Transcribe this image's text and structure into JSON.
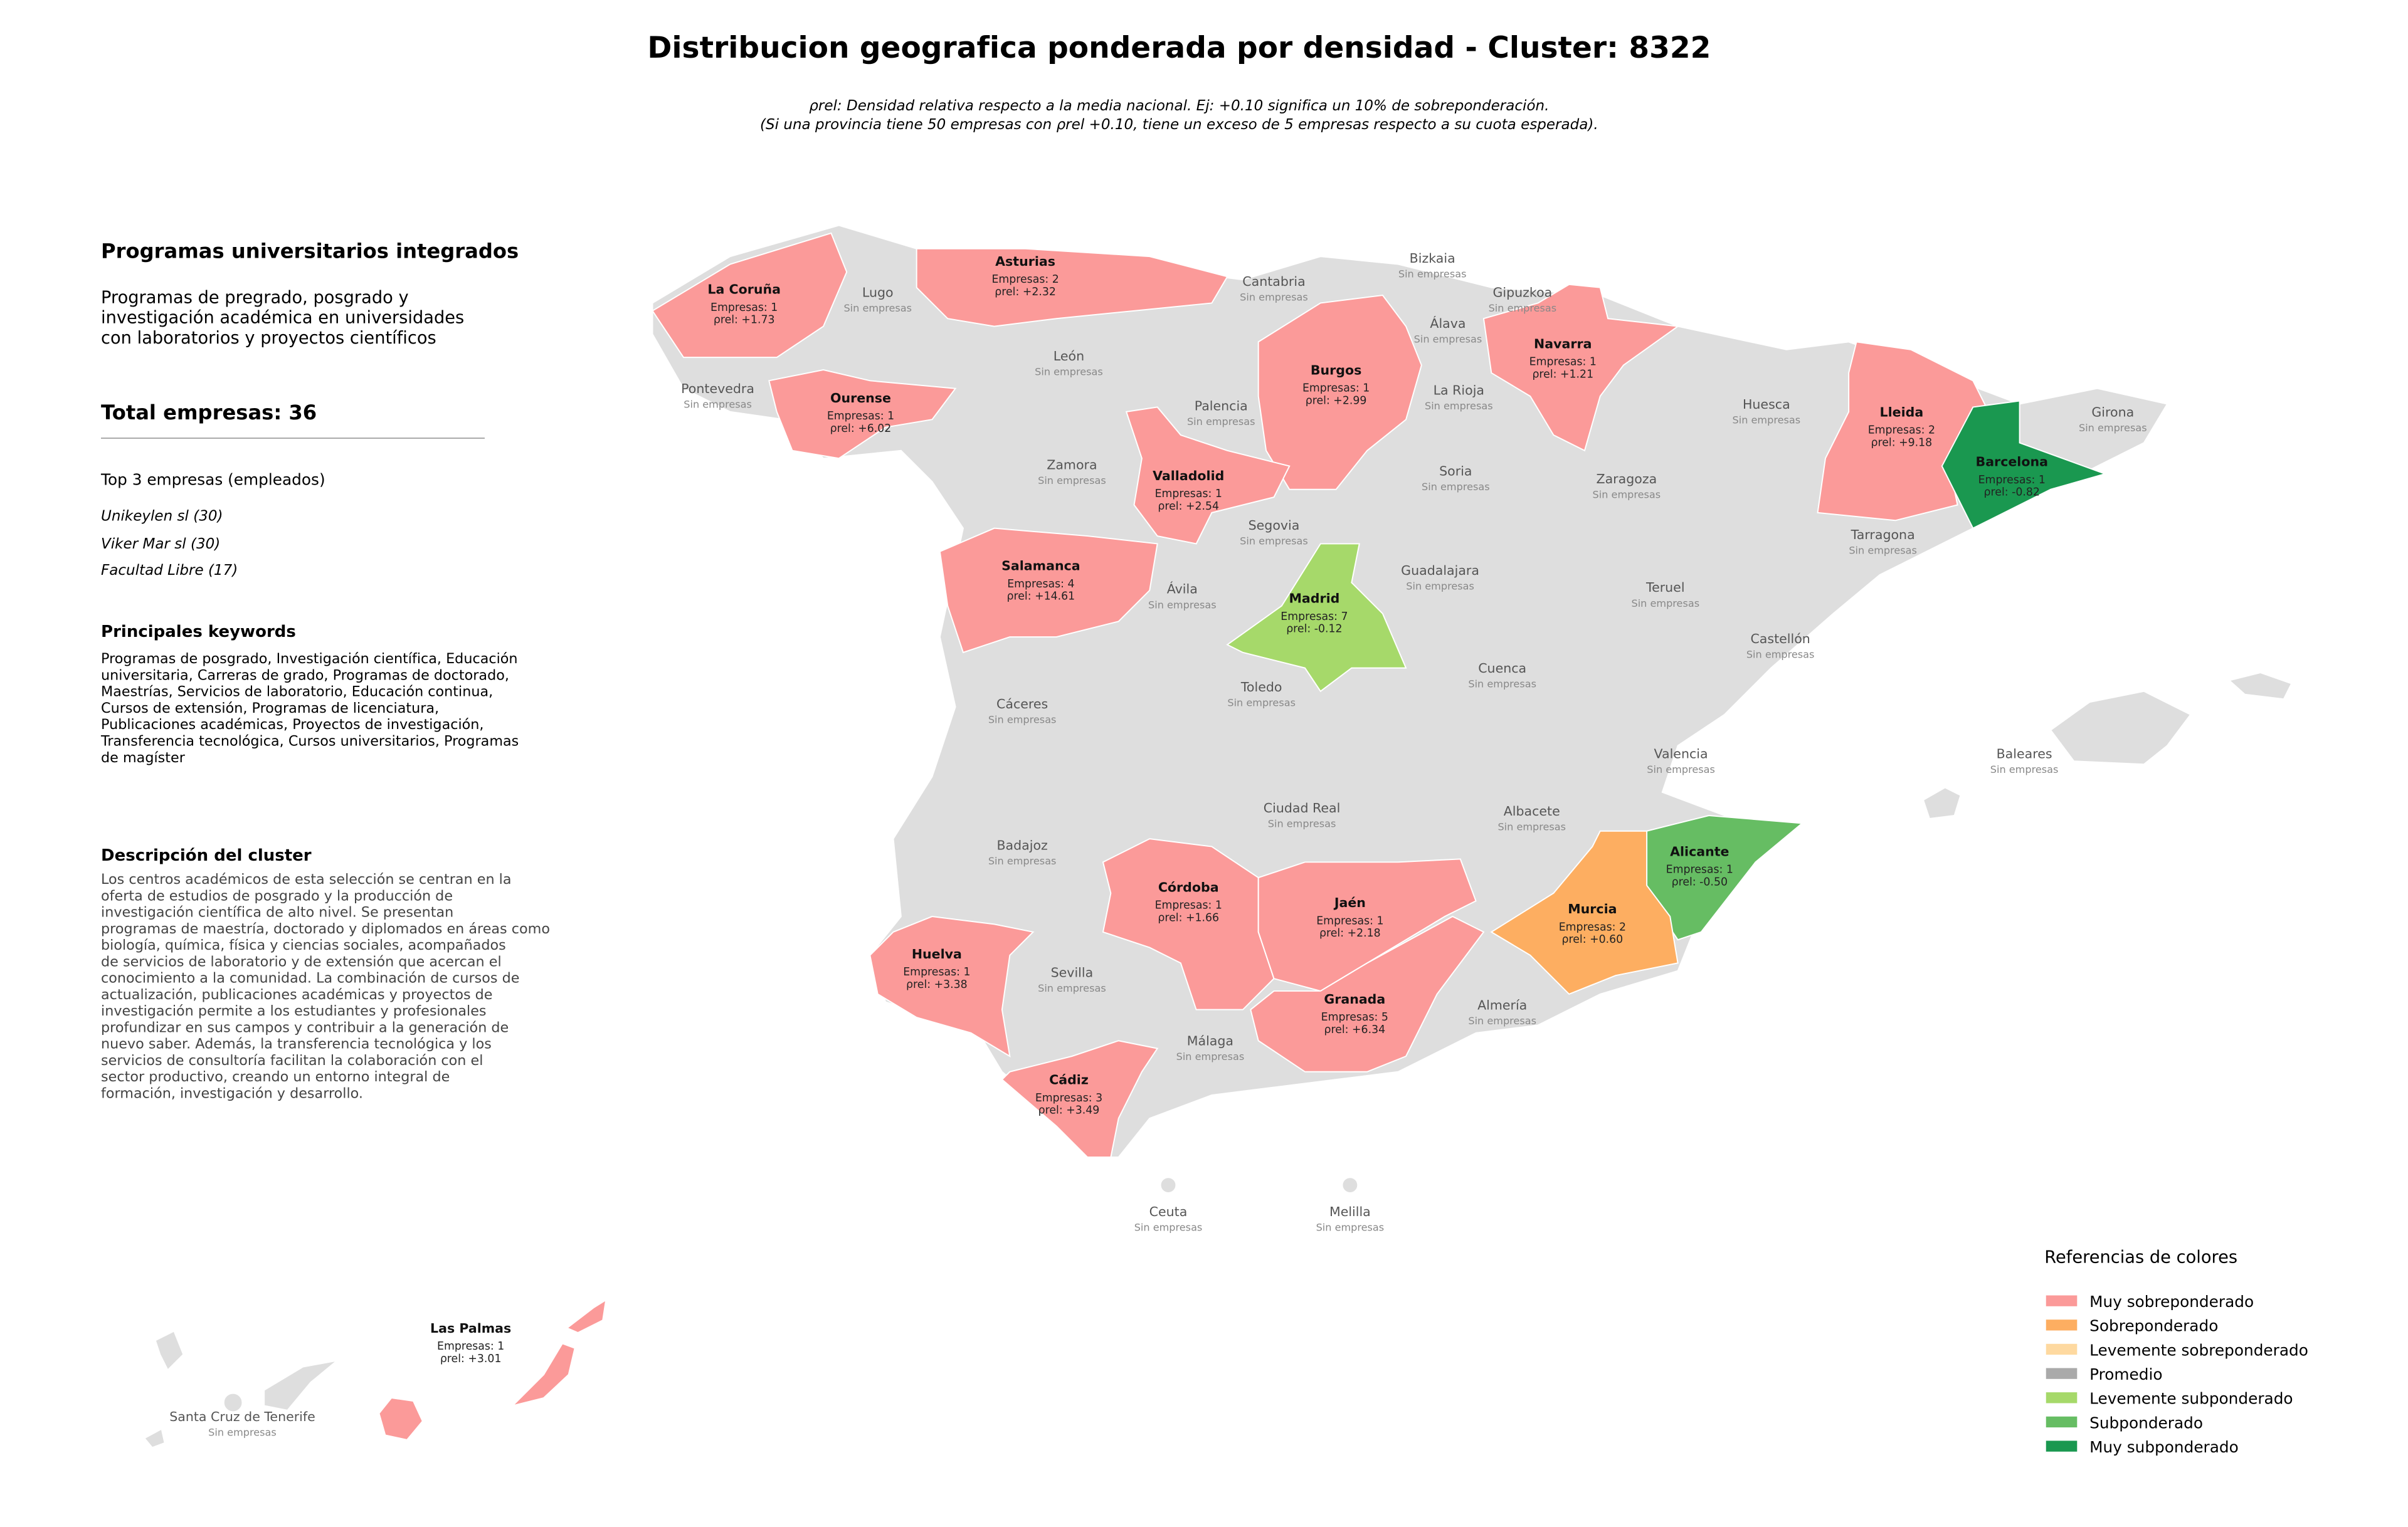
{
  "title": "Distribucion geografica ponderada por densidad - Cluster: 8322",
  "subtitle": [
    "ρrel: Densidad relativa respecto a la media nacional. Ej: +0.10 significa un 10% de sobreponderación.",
    "(Si una provincia tiene 50 empresas con ρrel +0.10, tiene un exceso de 5 empresas respecto a su cuota esperada)."
  ],
  "panel": {
    "heading": "Programas universitarios integrados",
    "description": [
      "Programas de pregrado, posgrado y",
      "investigación académica en universidades",
      "con laboratorios y proyectos científicos"
    ],
    "total": "Total empresas: 36",
    "top_heading": "Top 3 empresas (empleados)",
    "top": [
      "Unikeylen sl (30)",
      "Viker Mar sl (30)",
      "Facultad Libre (17)"
    ],
    "keywords_heading": "Principales keywords",
    "keywords": [
      "Programas de posgrado, Investigación científica, Educación",
      "universitaria, Carreras de grado, Programas de doctorado,",
      "Maestrías, Servicios de laboratorio, Educación continua,",
      "Cursos de extensión, Programas de licenciatura,",
      "Publicaciones académicas, Proyectos de investigación,",
      "Transferencia tecnológica, Cursos universitarios, Programas",
      "de magíster"
    ],
    "cluster_heading": "Descripción del cluster",
    "cluster_description": [
      "Los centros académicos de esta selección se centran en la",
      "oferta de estudios de posgrado y la producción de",
      "investigación científica de alto nivel. Se presentan",
      "programas de maestría, doctorado y diplomados en áreas como",
      "biología, química, física y ciencias sociales, acompañados",
      "de servicios de laboratorio y de extensión que acercan el",
      "conocimiento a la comunidad. La combinación de cursos de",
      "actualización, publicaciones académicas y proyectos de",
      "investigación permite a los estudiantes y profesionales",
      "profundizar en sus campos y contribuir a la generación de",
      "nuevo saber. Además, la transferencia tecnológica y los",
      "servicios de consultoría facilitan la colaboración con el",
      "sector productivo, creando un entorno integral de",
      "formación, investigación y desarrollo."
    ]
  },
  "provinces": [
    {
      "name": "La Coruña",
      "count": "Empresas: 1",
      "rho": "ρrel: +1.73",
      "color": "#fb9a99"
    },
    {
      "name": "Lugo",
      "note": "Sin empresas"
    },
    {
      "name": "Asturias",
      "count": "Empresas: 2",
      "rho": "ρrel: +2.32",
      "color": "#fb9a99"
    },
    {
      "name": "Cantabria",
      "note": "Sin empresas"
    },
    {
      "name": "Bizkaia",
      "note": "Sin empresas"
    },
    {
      "name": "Gipuzkoa",
      "note": "Sin empresas"
    },
    {
      "name": "Álava",
      "note": "Sin empresas"
    },
    {
      "name": "Navarra",
      "count": "Empresas: 1",
      "rho": "ρrel: +1.21",
      "color": "#fb9a99"
    },
    {
      "name": "Pontevedra",
      "note": "Sin empresas"
    },
    {
      "name": "Ourense",
      "count": "Empresas: 1",
      "rho": "ρrel: +6.02",
      "color": "#fb9a99"
    },
    {
      "name": "León",
      "note": "Sin empresas"
    },
    {
      "name": "Palencia",
      "note": "Sin empresas"
    },
    {
      "name": "Burgos",
      "count": "Empresas: 1",
      "rho": "ρrel: +2.99",
      "color": "#fb9a99"
    },
    {
      "name": "La Rioja",
      "note": "Sin empresas"
    },
    {
      "name": "Huesca",
      "note": "Sin empresas"
    },
    {
      "name": "Lleida",
      "count": "Empresas: 2",
      "rho": "ρrel: +9.18",
      "color": "#fb9a99"
    },
    {
      "name": "Girona",
      "note": "Sin empresas"
    },
    {
      "name": "Barcelona",
      "count": "Empresas: 1",
      "rho": "ρrel: -0.82",
      "color": "#1a9850"
    },
    {
      "name": "Zamora",
      "note": "Sin empresas"
    },
    {
      "name": "Valladolid",
      "count": "Empresas: 1",
      "rho": "ρrel: +2.54",
      "color": "#fb9a99"
    },
    {
      "name": "Soria",
      "note": "Sin empresas"
    },
    {
      "name": "Zaragoza",
      "note": "Sin empresas"
    },
    {
      "name": "Tarragona",
      "note": "Sin empresas"
    },
    {
      "name": "Segovia",
      "note": "Sin empresas"
    },
    {
      "name": "Salamanca",
      "count": "Empresas: 4",
      "rho": "ρrel: +14.61",
      "color": "#fb9a99"
    },
    {
      "name": "Ávila",
      "note": "Sin empresas"
    },
    {
      "name": "Madrid",
      "count": "Empresas: 7",
      "rho": "ρrel: -0.12",
      "color": "#a6d96a"
    },
    {
      "name": "Guadalajara",
      "note": "Sin empresas"
    },
    {
      "name": "Teruel",
      "note": "Sin empresas"
    },
    {
      "name": "Castellón",
      "note": "Sin empresas"
    },
    {
      "name": "Cuenca",
      "note": "Sin empresas"
    },
    {
      "name": "Cáceres",
      "note": "Sin empresas"
    },
    {
      "name": "Toledo",
      "note": "Sin empresas"
    },
    {
      "name": "Valencia",
      "note": "Sin empresas"
    },
    {
      "name": "Baleares",
      "note": "Sin empresas"
    },
    {
      "name": "Ciudad Real",
      "note": "Sin empresas"
    },
    {
      "name": "Albacete",
      "note": "Sin empresas"
    },
    {
      "name": "Badajoz",
      "note": "Sin empresas"
    },
    {
      "name": "Alicante",
      "count": "Empresas: 1",
      "rho": "ρrel: -0.50",
      "color": "#66bd63"
    },
    {
      "name": "Córdoba",
      "count": "Empresas: 1",
      "rho": "ρrel: +1.66",
      "color": "#fb9a99"
    },
    {
      "name": "Jaén",
      "count": "Empresas: 1",
      "rho": "ρrel: +2.18",
      "color": "#fb9a99"
    },
    {
      "name": "Murcia",
      "count": "Empresas: 2",
      "rho": "ρrel: +0.60",
      "color": "#fdae61"
    },
    {
      "name": "Huelva",
      "count": "Empresas: 1",
      "rho": "ρrel: +3.38",
      "color": "#fb9a99"
    },
    {
      "name": "Sevilla",
      "note": "Sin empresas"
    },
    {
      "name": "Granada",
      "count": "Empresas: 5",
      "rho": "ρrel: +6.34",
      "color": "#fb9a99"
    },
    {
      "name": "Almería",
      "note": "Sin empresas"
    },
    {
      "name": "Málaga",
      "note": "Sin empresas"
    },
    {
      "name": "Cádiz",
      "count": "Empresas: 3",
      "rho": "ρrel: +3.49",
      "color": "#fb9a99"
    },
    {
      "name": "Ceuta",
      "note": "Sin empresas"
    },
    {
      "name": "Melilla",
      "note": "Sin empresas"
    },
    {
      "name": "Las Palmas",
      "count": "Empresas: 1",
      "rho": "ρrel: +3.01",
      "color": "#fb9a99"
    },
    {
      "name": "Santa Cruz de Tenerife",
      "note": "Sin empresas"
    }
  ],
  "legend": {
    "title": "Referencias de colores",
    "items": [
      {
        "label": "Muy sobreponderado",
        "color": "#fb9a99"
      },
      {
        "label": "Sobreponderado",
        "color": "#fdae61"
      },
      {
        "label": "Levemente sobreponderado",
        "color": "#fed9a0"
      },
      {
        "label": "Promedio",
        "color": "#aaaaaa"
      },
      {
        "label": "Levemente subponderado",
        "color": "#a6d96a"
      },
      {
        "label": "Subponderado",
        "color": "#66bd63"
      },
      {
        "label": "Muy subponderado",
        "color": "#1a9850"
      }
    ]
  }
}
